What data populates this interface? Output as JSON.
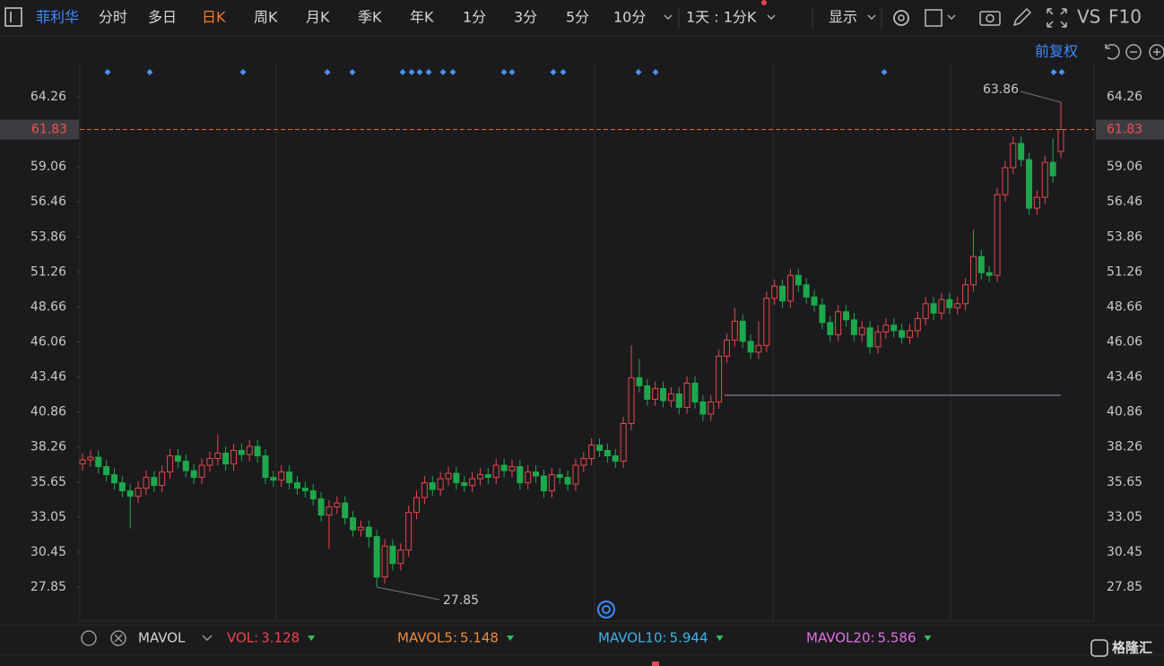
{
  "toolbar": {
    "stock": "菲利华",
    "tabs": [
      "分时",
      "多日",
      "日K",
      "周K",
      "月K",
      "季K",
      "年K",
      "1分",
      "3分",
      "5分",
      "10分"
    ],
    "active_tab": 2,
    "period": "1天 : 1分K",
    "display": "显示",
    "vs": "VS",
    "f10": "F10",
    "adjust": "前复权"
  },
  "chart_data": {
    "type": "candlestick",
    "up_color": "#e8474a",
    "down_color": "#1ea84c",
    "grid": false,
    "ylim": [
      25.32,
      66.46
    ],
    "yticks": [
      64.26,
      59.06,
      56.46,
      53.86,
      51.26,
      48.66,
      46.06,
      43.46,
      40.86,
      38.26,
      35.65,
      33.05,
      30.45,
      27.85
    ],
    "open": [
      37.0,
      37.3,
      37.5,
      36.8,
      36.2,
      35.6,
      35.0,
      34.6,
      35.2,
      36.0,
      35.4,
      36.4,
      37.6,
      37.2,
      36.5,
      36.0,
      36.9,
      37.4,
      37.8,
      37.0,
      38.0,
      37.7,
      38.3,
      37.6,
      36.0,
      35.8,
      36.4,
      35.6,
      35.2,
      35.0,
      34.4,
      33.2,
      33.8,
      34.1,
      33.0,
      32.1,
      32.3,
      31.6,
      28.6,
      30.9,
      29.6,
      30.6,
      33.4,
      34.5,
      35.6,
      35.1,
      35.9,
      36.3,
      35.6,
      35.4,
      35.9,
      36.2,
      36.0,
      36.9,
      36.5,
      36.8,
      35.6,
      36.4,
      36.1,
      35.0,
      36.2,
      36.0,
      35.5,
      36.9,
      37.4,
      38.4,
      38.0,
      37.6,
      37.2,
      40.0,
      43.4,
      42.8,
      41.8,
      42.6,
      41.7,
      42.2,
      41.2,
      43.0,
      41.6,
      40.7,
      41.6,
      45.0,
      46.2,
      47.6,
      46.1,
      45.3,
      45.8,
      49.3,
      50.2,
      49.1,
      51.0,
      50.3,
      49.4,
      48.8,
      47.5,
      46.6,
      48.3,
      47.7,
      46.6,
      47.1,
      45.7,
      46.8,
      47.3,
      46.9,
      46.4,
      46.9,
      47.8,
      48.9,
      48.2,
      49.2,
      48.6,
      48.9,
      50.3,
      52.4,
      51.2,
      51.0,
      57.0,
      59.0,
      60.8,
      59.6,
      56.0,
      56.8,
      59.4,
      60.2
    ],
    "high": [
      37.8,
      38.0,
      38.0,
      37.3,
      36.7,
      36.1,
      35.5,
      35.7,
      36.5,
      36.5,
      36.9,
      38.1,
      38.1,
      37.7,
      37.0,
      37.4,
      37.9,
      39.2,
      38.3,
      38.5,
      38.5,
      38.8,
      38.8,
      38.1,
      36.5,
      36.9,
      36.9,
      36.1,
      35.7,
      35.5,
      34.9,
      34.3,
      34.6,
      34.6,
      33.5,
      32.8,
      32.8,
      32.1,
      31.4,
      31.4,
      31.1,
      33.9,
      35.0,
      36.1,
      36.1,
      36.4,
      36.8,
      36.8,
      36.1,
      36.4,
      36.7,
      36.7,
      37.4,
      37.4,
      37.3,
      37.3,
      36.9,
      36.9,
      36.6,
      36.7,
      36.7,
      36.5,
      37.4,
      37.9,
      38.9,
      38.9,
      38.5,
      38.1,
      40.5,
      45.8,
      44.8,
      43.3,
      43.1,
      43.1,
      42.7,
      42.7,
      43.5,
      43.5,
      42.1,
      42.1,
      45.5,
      46.7,
      48.6,
      48.1,
      46.6,
      47.6,
      49.8,
      50.7,
      50.7,
      51.5,
      51.5,
      50.8,
      49.9,
      49.3,
      48.0,
      48.8,
      48.8,
      48.2,
      47.6,
      47.6,
      47.3,
      47.8,
      47.8,
      47.4,
      47.4,
      48.3,
      49.4,
      49.4,
      49.7,
      49.7,
      49.4,
      50.8,
      54.4,
      52.9,
      51.7,
      57.5,
      59.5,
      61.3,
      61.3,
      60.1,
      57.3,
      59.9,
      61.2,
      63.86
    ],
    "low": [
      36.5,
      36.8,
      36.3,
      35.7,
      35.1,
      34.5,
      32.2,
      34.1,
      34.7,
      34.9,
      34.9,
      35.9,
      36.7,
      36.0,
      35.5,
      35.5,
      36.4,
      36.9,
      36.5,
      36.5,
      37.2,
      37.2,
      37.1,
      35.5,
      35.3,
      35.3,
      35.1,
      34.7,
      34.5,
      33.9,
      32.7,
      30.7,
      33.3,
      32.5,
      31.6,
      31.6,
      30.8,
      27.85,
      28.1,
      29.1,
      29.1,
      30.1,
      32.9,
      34.0,
      34.6,
      34.6,
      35.4,
      35.1,
      34.9,
      34.9,
      35.4,
      35.5,
      35.5,
      36.0,
      36.0,
      35.1,
      35.1,
      35.6,
      34.5,
      34.5,
      35.5,
      35.0,
      35.0,
      36.4,
      36.9,
      37.5,
      37.1,
      36.7,
      36.7,
      39.5,
      42.3,
      41.3,
      41.3,
      41.2,
      41.2,
      40.7,
      40.7,
      41.1,
      40.2,
      40.2,
      41.1,
      44.5,
      45.7,
      45.6,
      44.8,
      44.8,
      45.3,
      48.8,
      48.6,
      48.6,
      49.8,
      48.9,
      48.3,
      47.0,
      46.1,
      46.1,
      47.2,
      46.1,
      46.1,
      45.2,
      45.2,
      46.3,
      46.4,
      45.9,
      45.9,
      46.4,
      47.3,
      47.7,
      47.7,
      48.1,
      48.1,
      48.4,
      49.8,
      50.7,
      50.5,
      50.5,
      56.5,
      58.5,
      59.1,
      55.5,
      55.5,
      56.3,
      57.9,
      59.7
    ],
    "close": [
      37.3,
      37.5,
      36.8,
      36.2,
      35.6,
      35.0,
      34.6,
      35.2,
      36.0,
      35.4,
      36.4,
      37.6,
      37.2,
      36.5,
      36.0,
      36.9,
      37.4,
      37.8,
      37.0,
      38.0,
      37.7,
      38.3,
      37.6,
      36.0,
      35.8,
      36.4,
      35.6,
      35.2,
      35.0,
      34.4,
      33.2,
      33.8,
      34.1,
      33.0,
      32.1,
      32.3,
      31.6,
      28.6,
      30.9,
      29.6,
      30.6,
      33.4,
      34.5,
      35.6,
      35.1,
      35.9,
      36.3,
      35.6,
      35.4,
      35.9,
      36.2,
      36.0,
      36.9,
      36.5,
      36.8,
      35.6,
      36.4,
      36.1,
      35.0,
      36.2,
      36.0,
      35.5,
      36.9,
      37.4,
      38.4,
      38.0,
      37.6,
      37.2,
      40.0,
      43.4,
      42.8,
      41.8,
      42.6,
      41.7,
      42.2,
      41.2,
      43.0,
      41.6,
      40.7,
      41.6,
      45.0,
      46.2,
      47.6,
      46.1,
      45.3,
      45.8,
      49.3,
      50.2,
      49.1,
      51.0,
      50.3,
      49.4,
      48.8,
      47.5,
      46.6,
      48.3,
      47.7,
      46.6,
      47.1,
      45.7,
      46.8,
      47.3,
      46.9,
      46.4,
      46.9,
      47.8,
      48.9,
      48.2,
      49.2,
      48.6,
      48.9,
      50.3,
      52.4,
      51.2,
      51.0,
      57.0,
      59.0,
      60.8,
      59.6,
      56.0,
      56.8,
      59.4,
      58.4,
      61.83
    ]
  },
  "indicator": {
    "name": "MAVOL",
    "items": [
      {
        "label": "VOL:",
        "value": 3.128,
        "color": "#e8474a"
      },
      {
        "label": "MAVOL5:",
        "value": 5.148,
        "color": "#f08c3a"
      },
      {
        "label": "MAVOL10:",
        "value": 5.944,
        "color": "#3fb4e8"
      },
      {
        "label": "MAVOL20:",
        "value": 5.586,
        "color": "#e070e0"
      }
    ]
  },
  "logo": "格隆汇"
}
